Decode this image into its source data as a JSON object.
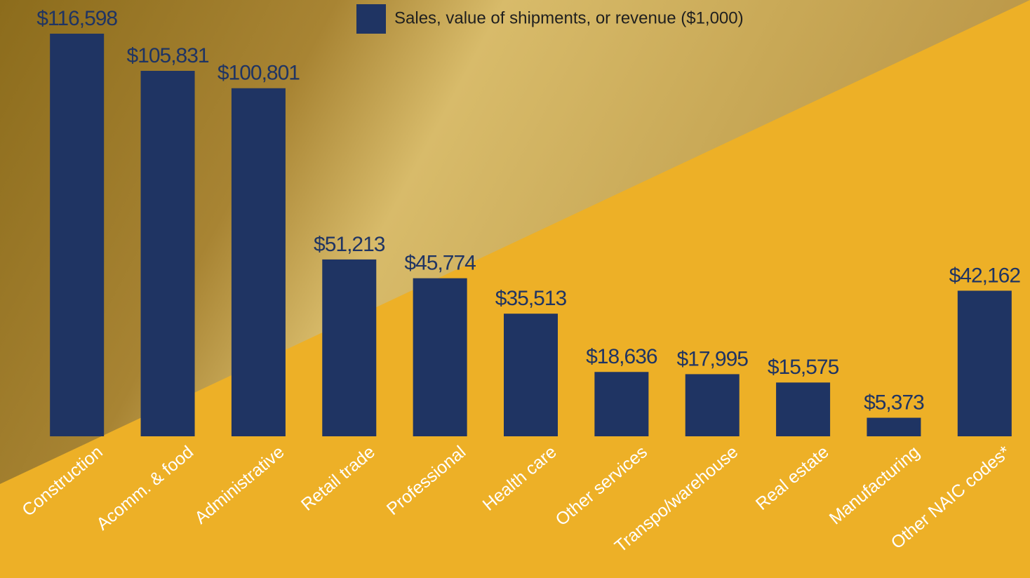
{
  "chart_data": {
    "type": "bar",
    "categories": [
      "Construction",
      "Acomm. & food",
      "Administrative",
      "Retail trade",
      "Professional",
      "Health care",
      "Other services",
      "Transpo/warehouse",
      "Real estate",
      "Manufacturing",
      "Other NAIC codes*"
    ],
    "series": [
      {
        "name": "Sales, value of shipments, or revenue ($1,000)",
        "color": "#1f3463",
        "values": [
          116598,
          105831,
          100801,
          51213,
          45774,
          35513,
          18636,
          17995,
          15575,
          5373,
          42162
        ],
        "value_labels": [
          "$116,598",
          "$105,831",
          "$100,801",
          "$51,213",
          "$45,774",
          "$35,513",
          "$18,636",
          "$17,995",
          "$15,575",
          "$5,373",
          "$42,162"
        ]
      }
    ]
  }
}
